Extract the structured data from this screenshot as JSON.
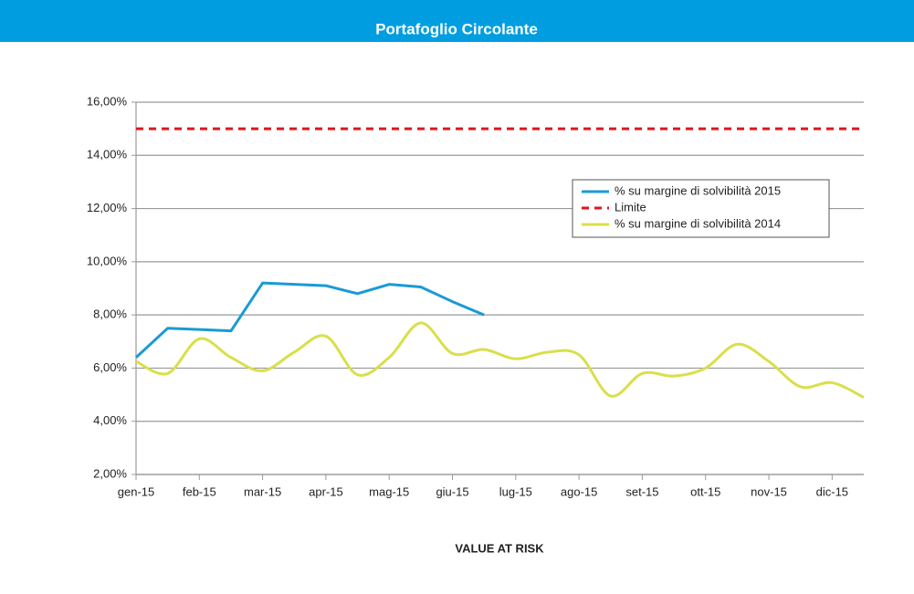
{
  "chart_data": {
    "type": "line",
    "title": "Portafoglio Circolante",
    "x_label": "VALUE AT RISK",
    "categories": [
      "gen-15",
      null,
      "feb-15",
      null,
      "mar-15",
      null,
      "apr-15",
      null,
      "mag-15",
      null,
      "giu-15",
      null,
      "lug-15",
      null,
      "ago-15",
      null,
      "set-15",
      null,
      "ott-15",
      null,
      "nov-15",
      null,
      "dic-15",
      null
    ],
    "series": [
      {
        "name": "% su margine di solvibilità 2015",
        "color": "#1a9ad6",
        "smooth": false,
        "dashed": false,
        "values": [
          6.4,
          7.5,
          7.45,
          7.4,
          9.2,
          9.15,
          9.1,
          8.8,
          9.15,
          9.05,
          8.5,
          8.0,
          null,
          null,
          null,
          null,
          null,
          null,
          null,
          null,
          null,
          null,
          null,
          null
        ]
      },
      {
        "name": "Limite",
        "color": "#e0151f",
        "smooth": false,
        "dashed": true,
        "values": [
          15,
          15,
          15,
          15,
          15,
          15,
          15,
          15,
          15,
          15,
          15,
          15,
          15,
          15,
          15,
          15,
          15,
          15,
          15,
          15,
          15,
          15,
          15,
          15
        ]
      },
      {
        "name": "% su margine di solvibilità 2014",
        "color": "#d9df4a",
        "smooth": true,
        "dashed": false,
        "values": [
          6.25,
          5.8,
          7.1,
          6.4,
          5.9,
          6.6,
          7.2,
          5.75,
          6.4,
          7.7,
          6.55,
          6.7,
          6.35,
          6.6,
          6.5,
          4.95,
          5.8,
          5.7,
          6.0,
          6.9,
          6.25,
          5.3,
          5.45,
          4.9
        ]
      }
    ],
    "ylim": [
      2,
      16
    ],
    "yticks": [
      {
        "value": 2,
        "label": "2,00%"
      },
      {
        "value": 4,
        "label": "4,00%"
      },
      {
        "value": 6,
        "label": "6,00%"
      },
      {
        "value": 8,
        "label": "8,00%"
      },
      {
        "value": 10,
        "label": "10,00%"
      },
      {
        "value": 12,
        "label": "12,00%"
      },
      {
        "value": 14,
        "label": "14,00%"
      },
      {
        "value": 16,
        "label": "16,00%"
      }
    ],
    "grid": true,
    "legend": "upper right"
  }
}
